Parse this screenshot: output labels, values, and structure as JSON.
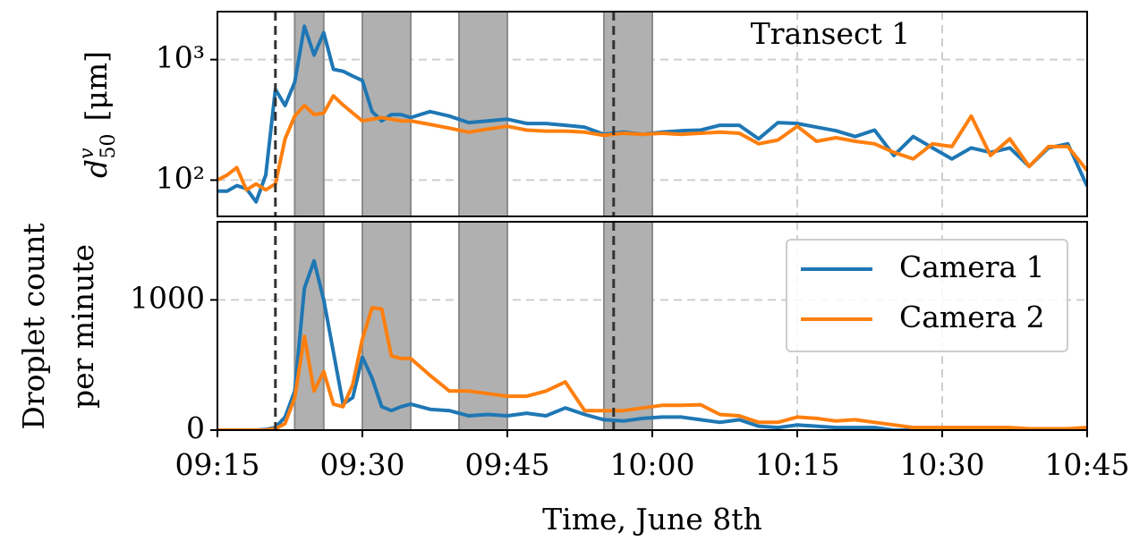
{
  "chart_data": [
    {
      "type": "line",
      "annotation": "Transect 1",
      "ylabel": {
        "symbol": "d",
        "superscript": "v",
        "subscript": "50",
        "unit": "[μm]"
      },
      "log_y": true,
      "ylim": [
        50,
        2500
      ],
      "yticks": [
        {
          "value": 100,
          "label": "10²"
        },
        {
          "value": 1000,
          "label": "10³"
        }
      ],
      "grid": true,
      "x": [
        "09:15",
        "09:16",
        "09:17",
        "09:18",
        "09:19",
        "09:20",
        "09:21",
        "09:22",
        "09:23",
        "09:24",
        "09:25",
        "09:26",
        "09:27",
        "09:28",
        "09:29",
        "09:30",
        "09:31",
        "09:32",
        "09:33",
        "09:34",
        "09:35",
        "09:37",
        "09:39",
        "09:41",
        "09:43",
        "09:45",
        "09:47",
        "09:49",
        "09:51",
        "09:53",
        "09:55",
        "09:57",
        "09:59",
        "10:01",
        "10:03",
        "10:05",
        "10:07",
        "10:09",
        "10:11",
        "10:13",
        "10:15",
        "10:17",
        "10:19",
        "10:21",
        "10:23",
        "10:25",
        "10:27",
        "10:29",
        "10:31",
        "10:33",
        "10:35",
        "10:37",
        "10:39",
        "10:41",
        "10:43",
        "10:45"
      ],
      "series": [
        {
          "name": "Camera 1",
          "color": "#1f77b4",
          "values": [
            81,
            81,
            90,
            85,
            66,
            110,
            567,
            416,
            650,
            1890,
            1090,
            1670,
            830,
            800,
            730,
            670,
            370,
            310,
            350,
            350,
            330,
            370,
            340,
            300,
            310,
            320,
            295,
            295,
            285,
            275,
            240,
            250,
            240,
            250,
            257,
            260,
            285,
            285,
            220,
            300,
            295,
            275,
            257,
            230,
            260,
            160,
            230,
            185,
            150,
            185,
            170,
            185,
            130,
            185,
            200,
            89
          ]
        },
        {
          "name": "Camera 2",
          "color": "#ff7f0e",
          "values": [
            100,
            110,
            127,
            83,
            93,
            83,
            93,
            220,
            340,
            416,
            350,
            360,
            500,
            420,
            360,
            310,
            320,
            330,
            320,
            310,
            310,
            290,
            270,
            250,
            265,
            280,
            260,
            255,
            255,
            250,
            235,
            245,
            240,
            245,
            240,
            245,
            250,
            245,
            200,
            215,
            280,
            210,
            225,
            210,
            200,
            170,
            150,
            200,
            190,
            340,
            160,
            220,
            130,
            190,
            190,
            120
          ]
        }
      ]
    },
    {
      "type": "line",
      "ylabel": [
        "Droplet count",
        "per minute"
      ],
      "xlabel": "Time, June 8th",
      "xlim": [
        "09:15",
        "10:45"
      ],
      "xticks": [
        "09:15",
        "09:30",
        "09:45",
        "10:00",
        "10:15",
        "10:30",
        "10:45"
      ],
      "ylim": [
        0,
        1600
      ],
      "yticks": [
        0,
        1000
      ],
      "grid": true,
      "legend": "upper right",
      "spans": [
        [
          "09:23",
          "09:26"
        ],
        [
          "09:30",
          "09:35"
        ],
        [
          "09:40",
          "09:45"
        ],
        [
          "09:55",
          "10:00"
        ]
      ],
      "vlines": [
        "09:21",
        "09:56"
      ],
      "x": [
        "09:15",
        "09:16",
        "09:17",
        "09:18",
        "09:19",
        "09:20",
        "09:21",
        "09:22",
        "09:23",
        "09:24",
        "09:25",
        "09:26",
        "09:27",
        "09:28",
        "09:29",
        "09:30",
        "09:31",
        "09:32",
        "09:33",
        "09:34",
        "09:35",
        "09:37",
        "09:39",
        "09:41",
        "09:43",
        "09:45",
        "09:47",
        "09:49",
        "09:51",
        "09:53",
        "09:55",
        "09:57",
        "09:59",
        "10:01",
        "10:03",
        "10:05",
        "10:07",
        "10:09",
        "10:11",
        "10:13",
        "10:15",
        "10:17",
        "10:19",
        "10:21",
        "10:23",
        "10:25",
        "10:27",
        "10:29",
        "10:31",
        "10:33",
        "10:35",
        "10:37",
        "10:39",
        "10:41",
        "10:43",
        "10:45"
      ],
      "series": [
        {
          "name": "Camera 1",
          "color": "#1f77b4",
          "values": [
            0,
            0,
            0,
            0,
            0,
            5,
            20,
            100,
            300,
            1090,
            1300,
            1000,
            600,
            200,
            250,
            560,
            400,
            180,
            150,
            180,
            200,
            160,
            150,
            110,
            120,
            110,
            130,
            110,
            170,
            120,
            80,
            70,
            90,
            100,
            100,
            80,
            60,
            80,
            30,
            20,
            40,
            30,
            20,
            20,
            20,
            0,
            0,
            0,
            0,
            0,
            0,
            0,
            0,
            0,
            0,
            0
          ]
        },
        {
          "name": "Camera 2",
          "color": "#ff7f0e",
          "values": [
            0,
            0,
            0,
            0,
            0,
            0,
            10,
            50,
            250,
            720,
            300,
            450,
            200,
            180,
            350,
            700,
            940,
            930,
            570,
            550,
            550,
            420,
            300,
            300,
            280,
            260,
            260,
            300,
            370,
            150,
            150,
            150,
            170,
            190,
            190,
            195,
            120,
            110,
            60,
            60,
            100,
            90,
            70,
            80,
            60,
            40,
            20,
            20,
            20,
            20,
            20,
            20,
            10,
            10,
            10,
            20
          ]
        }
      ]
    }
  ]
}
